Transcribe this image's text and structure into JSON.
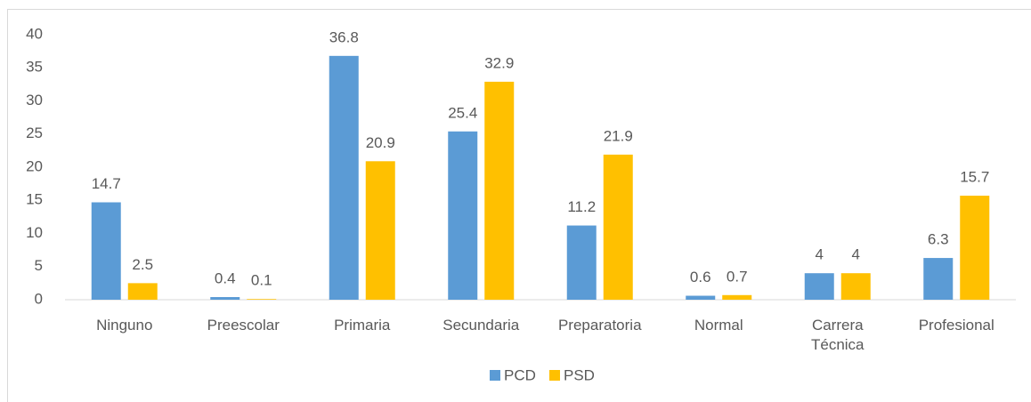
{
  "chart_data": {
    "type": "bar",
    "categories": [
      "Ninguno",
      "Preescolar",
      "Primaria",
      "Secundaria",
      "Preparatoria",
      "Normal",
      "Carrera Técnica",
      "Profesional"
    ],
    "series": [
      {
        "name": "PCD",
        "color": "#5b9bd5",
        "values": [
          14.7,
          0.4,
          36.8,
          25.4,
          11.2,
          0.6,
          4,
          6.3
        ]
      },
      {
        "name": "PSD",
        "color": "#ffc000",
        "values": [
          2.5,
          0.1,
          20.9,
          32.9,
          21.9,
          0.7,
          4,
          15.7
        ]
      }
    ],
    "ylim": [
      0,
      40
    ],
    "yticks": [
      0,
      5,
      10,
      15,
      20,
      25,
      30,
      35,
      40
    ],
    "grid": false,
    "legend": "bottom"
  }
}
